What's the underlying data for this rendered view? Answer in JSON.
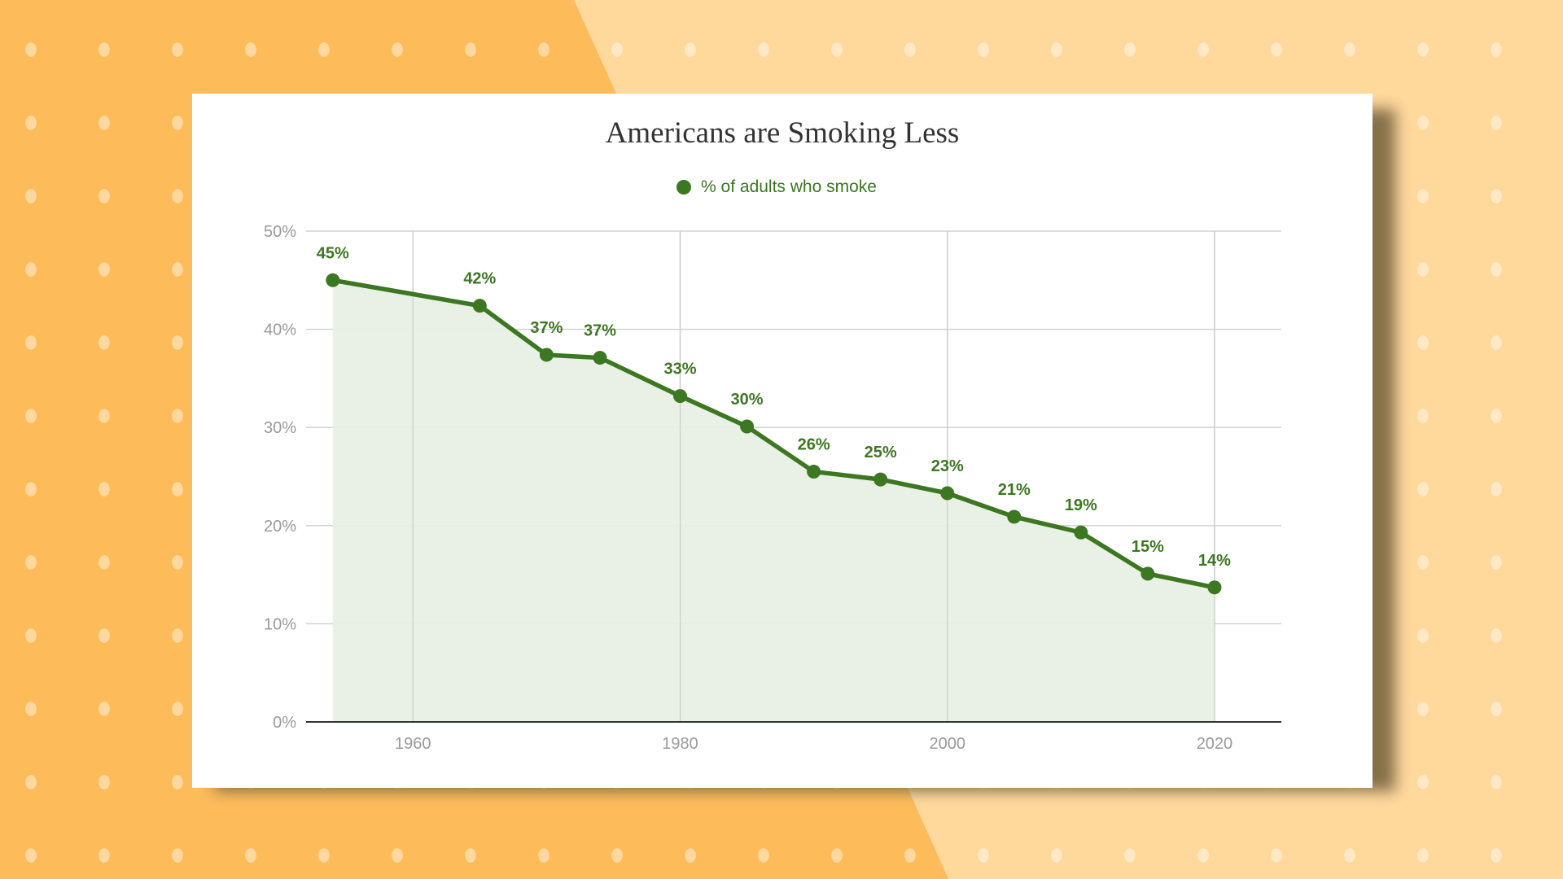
{
  "chart_data": {
    "type": "line",
    "title": "Americans are Smoking Less",
    "xlabel": "",
    "ylabel": "",
    "legend_position": "top",
    "grid": true,
    "xlim": [
      1952,
      2025
    ],
    "ylim": [
      0,
      50
    ],
    "x_ticks": [
      1960,
      1980,
      2000,
      2020
    ],
    "y_ticks": [
      0,
      10,
      20,
      30,
      40,
      50
    ],
    "y_tick_labels": [
      "0%",
      "10%",
      "20%",
      "30%",
      "40%",
      "50%"
    ],
    "series": [
      {
        "name": "% of adults who smoke",
        "color": "#3c7721",
        "area_fill": "#e8efe5",
        "x": [
          1954,
          1965,
          1970,
          1974,
          1980,
          1985,
          1990,
          1995,
          2000,
          2005,
          2010,
          2015,
          2020
        ],
        "y": [
          45,
          42.4,
          37.4,
          37.1,
          33.2,
          30.1,
          25.5,
          24.7,
          23.3,
          20.9,
          19.3,
          15.1,
          13.7
        ],
        "labels": [
          "45%",
          "42%",
          "37%",
          "37%",
          "33%",
          "30%",
          "26%",
          "25%",
          "23%",
          "21%",
          "19%",
          "15%",
          "14%"
        ]
      }
    ]
  }
}
